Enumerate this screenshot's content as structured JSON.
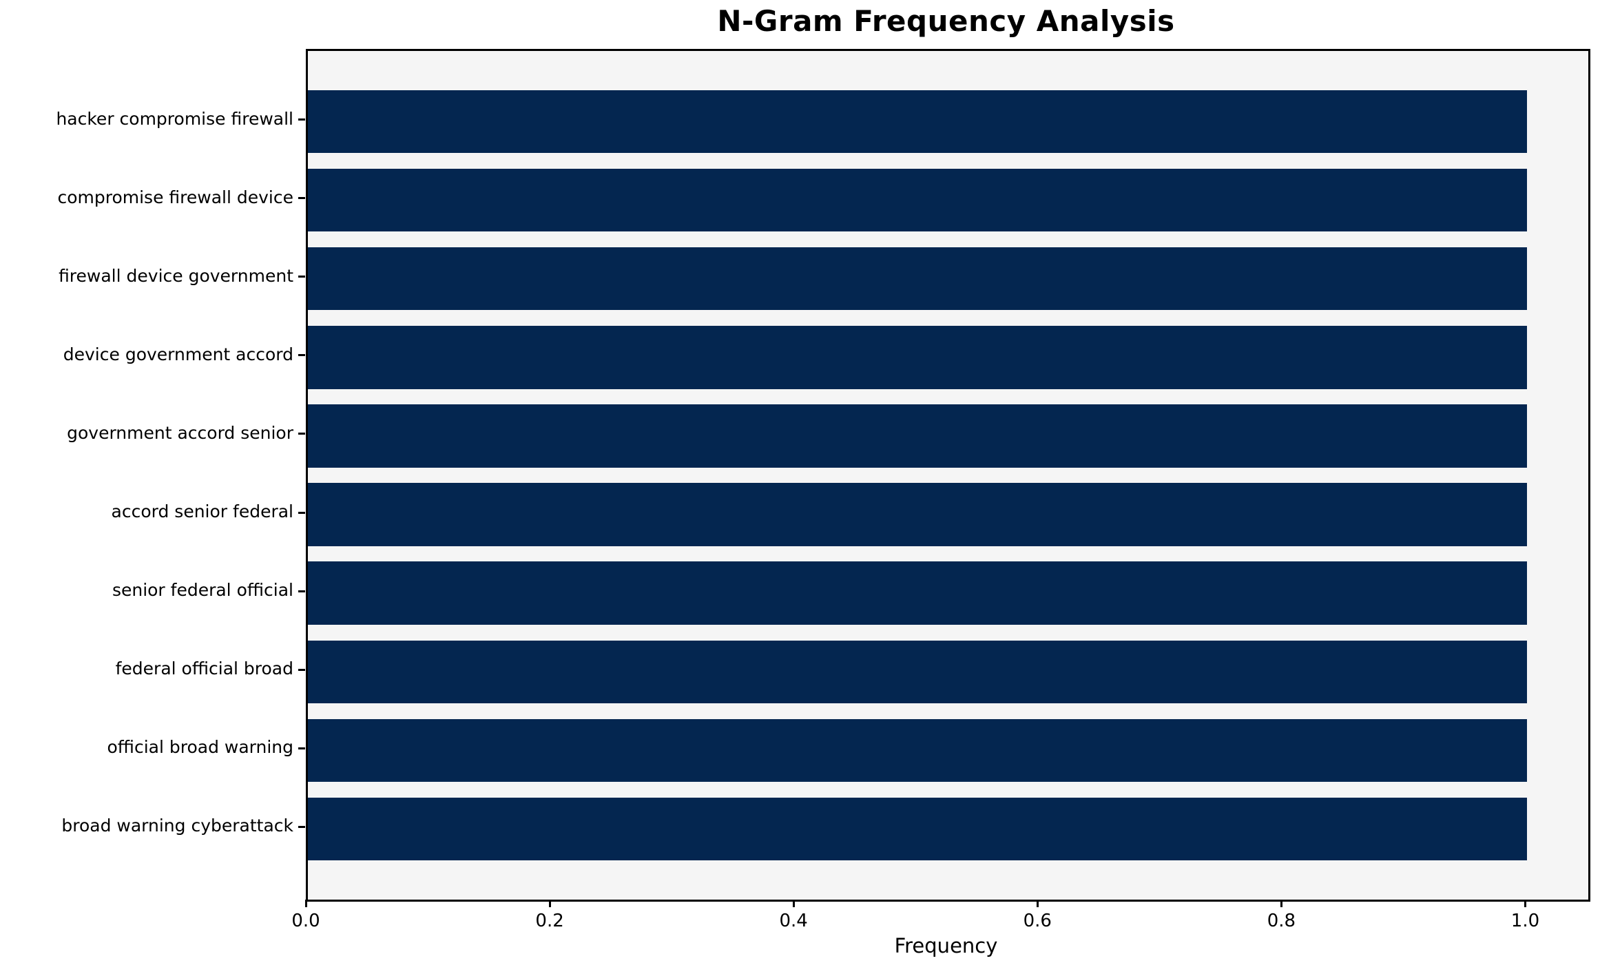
{
  "chart_data": {
    "type": "bar",
    "orientation": "horizontal",
    "title": "N-Gram Frequency Analysis",
    "xlabel": "Frequency",
    "ylabel": "",
    "categories": [
      "hacker compromise firewall",
      "compromise firewall device",
      "firewall device government",
      "device government accord",
      "government accord senior",
      "accord senior federal",
      "senior federal official",
      "federal official broad",
      "official broad warning",
      "broad warning cyberattack"
    ],
    "values": [
      1.0,
      1.0,
      1.0,
      1.0,
      1.0,
      1.0,
      1.0,
      1.0,
      1.0,
      1.0
    ],
    "xlim": [
      0,
      1.05
    ],
    "xticks": [
      0.0,
      0.2,
      0.4,
      0.6,
      0.8,
      1.0
    ],
    "xtick_labels": [
      "0.0",
      "0.2",
      "0.4",
      "0.6",
      "0.8",
      "1.0"
    ],
    "bar_height_fraction": 0.8,
    "grid": false,
    "legend": "none",
    "colors": {
      "bar": "#042650",
      "plot_background": "#f5f5f5",
      "figure_background": "#ffffff",
      "text": "#000000",
      "spine": "#000000"
    }
  }
}
